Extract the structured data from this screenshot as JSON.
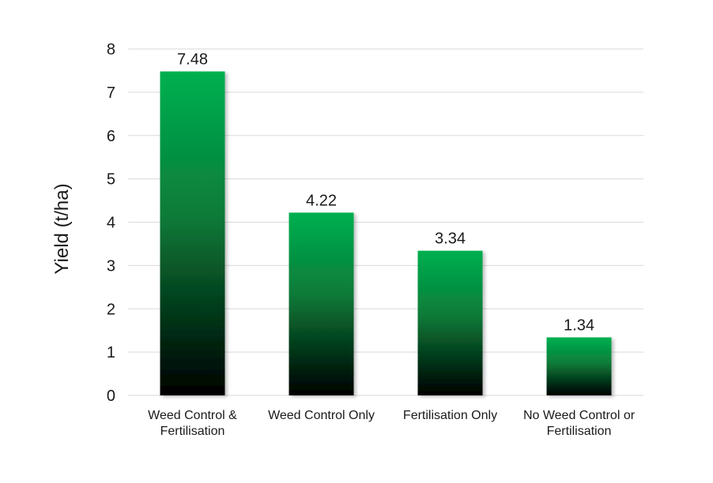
{
  "chart_data": {
    "type": "bar",
    "title": "",
    "xlabel": "",
    "ylabel": "Yield (t/ha)",
    "ylim": [
      0,
      8
    ],
    "yticks": [
      0,
      1,
      2,
      3,
      4,
      5,
      6,
      7,
      8
    ],
    "grid": true,
    "legend": "none",
    "categories": [
      [
        "Weed Control &",
        "Fertilisation"
      ],
      [
        "Weed Control Only"
      ],
      [
        "Fertilisation Only"
      ],
      [
        "No Weed Control or",
        "Fertilisation"
      ]
    ],
    "values": [
      7.48,
      4.22,
      3.34,
      1.34
    ],
    "value_labels": [
      "7.48",
      "4.22",
      "3.34",
      "1.34"
    ],
    "colors": {
      "bar_top": "#00b050",
      "bar_bottom": "#000000",
      "grid": "#d9d9d9"
    }
  }
}
